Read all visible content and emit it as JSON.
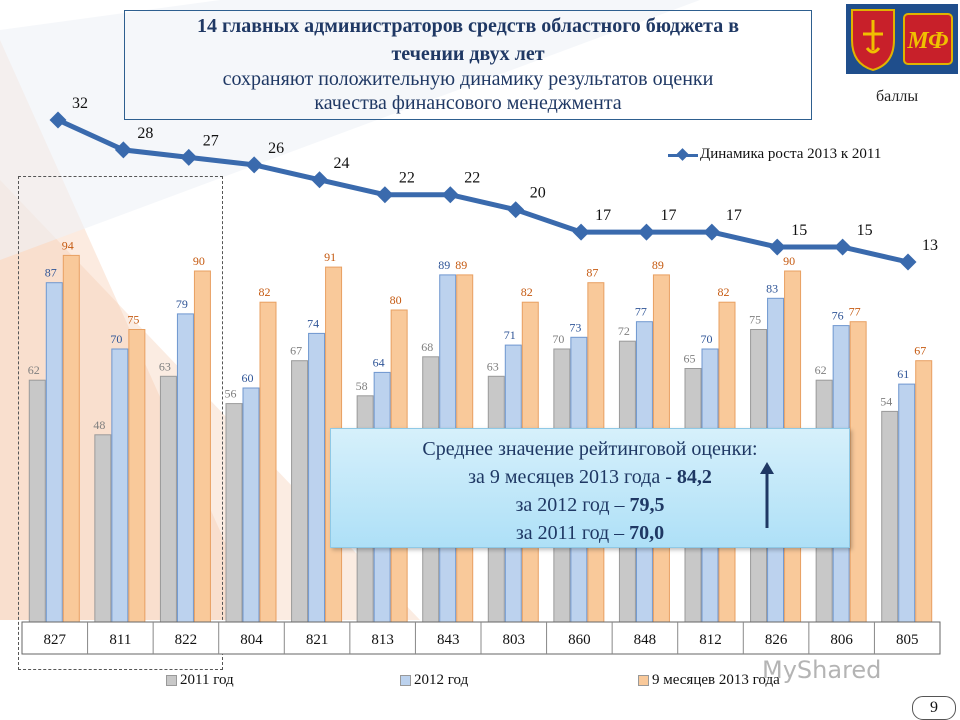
{
  "title": {
    "line1": "14 главных администраторов средств областного бюджета  в",
    "line2": "течении двух лет",
    "line3": "сохраняют положительную динамику результатов оценки",
    "line4": "качества финансового менеджмента"
  },
  "emblem": {
    "icon": "region-coat-of-arms-icon",
    "logo_text": "МФ"
  },
  "units": "баллы",
  "info_box": {
    "title": "Среднее значение рейтинговой оценки:",
    "line1_prefix": "за  9 месяцев 2013 года -  ",
    "line1_value": "84,2",
    "line2_prefix": "за 2012 год –  ",
    "line2_value": "79,5",
    "line3_prefix": "за 2011 год – ",
    "line3_value": "70,0"
  },
  "watermark": "MyShared",
  "page_number": "9",
  "colors": {
    "series_2011": "#c8c8c8",
    "series_2012": "#bcd2ee",
    "series_2013": "#f9c99a",
    "line": "#3a6aad",
    "title": "#1f3864"
  },
  "chart_data": {
    "type": "bar",
    "categories": [
      "827",
      "811",
      "822",
      "804",
      "821",
      "813",
      "843",
      "803",
      "860",
      "848",
      "812",
      "826",
      "806",
      "805"
    ],
    "series": [
      {
        "name": "2011 год",
        "values": [
          62,
          48,
          63,
          56,
          67,
          58,
          68,
          63,
          70,
          72,
          65,
          75,
          62,
          54
        ]
      },
      {
        "name": "2012 год",
        "values": [
          87,
          70,
          79,
          60,
          74,
          64,
          89,
          71,
          73,
          77,
          70,
          83,
          76,
          61
        ]
      },
      {
        "name": "9 месяцев 2013 года",
        "values": [
          94,
          75,
          90,
          82,
          91,
          80,
          89,
          82,
          87,
          89,
          82,
          90,
          77,
          67
        ]
      }
    ],
    "line_series": {
      "name": "Динамика роста 2013 к 2011",
      "values": [
        32,
        28,
        27,
        26,
        24,
        22,
        22,
        20,
        17,
        17,
        17,
        15,
        15,
        13
      ]
    },
    "ylim": [
      0,
      100
    ],
    "legend": "bottom",
    "grid": false
  }
}
